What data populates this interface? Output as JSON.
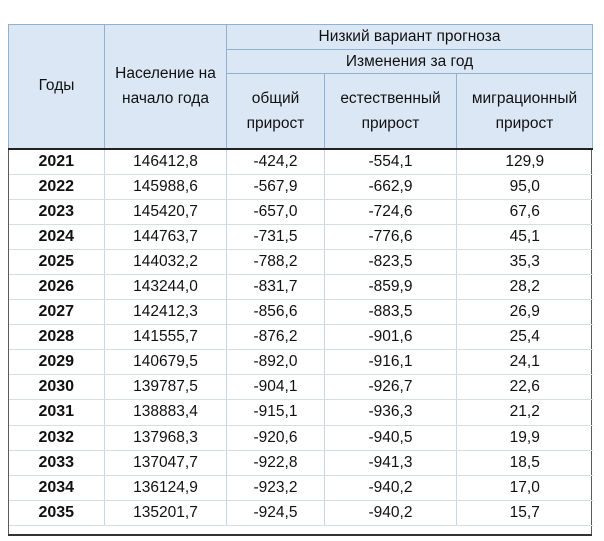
{
  "header": {
    "years": "Годы",
    "population": [
      "Население на",
      "начало года"
    ],
    "variant": "Низкий вариант прогноза",
    "changes": "Изменения за год",
    "total": [
      "общий",
      "прирост"
    ],
    "natural": [
      "естественный",
      "прирост"
    ],
    "migration": [
      "миграционный",
      "прирост"
    ]
  },
  "rows": [
    {
      "year": "2021",
      "population": "146412,8",
      "total": "-424,2",
      "natural": "-554,1",
      "migration": "129,9"
    },
    {
      "year": "2022",
      "population": "145988,6",
      "total": "-567,9",
      "natural": "-662,9",
      "migration": "95,0"
    },
    {
      "year": "2023",
      "population": "145420,7",
      "total": "-657,0",
      "natural": "-724,6",
      "migration": "67,6"
    },
    {
      "year": "2024",
      "population": "144763,7",
      "total": "-731,5",
      "natural": "-776,6",
      "migration": "45,1"
    },
    {
      "year": "2025",
      "population": "144032,2",
      "total": "-788,2",
      "natural": "-823,5",
      "migration": "35,3"
    },
    {
      "year": "2026",
      "population": "143244,0",
      "total": "-831,7",
      "natural": "-859,9",
      "migration": "28,2"
    },
    {
      "year": "2027",
      "population": "142412,3",
      "total": "-856,6",
      "natural": "-883,5",
      "migration": "26,9"
    },
    {
      "year": "2028",
      "population": "141555,7",
      "total": "-876,2",
      "natural": "-901,6",
      "migration": "25,4"
    },
    {
      "year": "2029",
      "population": "140679,5",
      "total": "-892,0",
      "natural": "-916,1",
      "migration": "24,1"
    },
    {
      "year": "2030",
      "population": "139787,5",
      "total": "-904,1",
      "natural": "-926,7",
      "migration": "22,6"
    },
    {
      "year": "2031",
      "population": "138883,4",
      "total": "-915,1",
      "natural": "-936,3",
      "migration": "21,2"
    },
    {
      "year": "2032",
      "population": "137968,3",
      "total": "-920,6",
      "natural": "-940,5",
      "migration": "19,9"
    },
    {
      "year": "2033",
      "population": "137047,7",
      "total": "-922,8",
      "natural": "-941,3",
      "migration": "18,5"
    },
    {
      "year": "2034",
      "population": "136124,9",
      "total": "-923,2",
      "natural": "-940,2",
      "migration": "17,0"
    },
    {
      "year": "2035",
      "population": "135201,7",
      "total": "-924,5",
      "natural": "-940,2",
      "migration": "15,7"
    }
  ],
  "colors": {
    "header_bg": "#dbe7f4",
    "header_border": "#8fb1d3"
  }
}
